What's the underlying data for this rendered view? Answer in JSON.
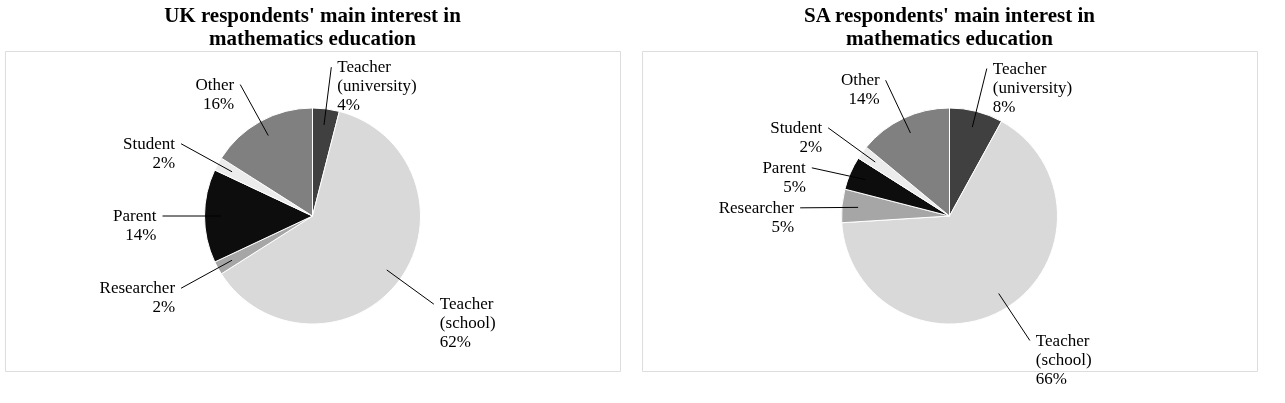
{
  "chart_data": [
    {
      "type": "pie",
      "title": "UK respondents' main interest in mathematics education",
      "categories": [
        "Teacher (university)",
        "Teacher (school)",
        "Researcher",
        "Parent",
        "Student",
        "Other"
      ],
      "values": [
        4,
        62,
        2,
        14,
        2,
        16
      ],
      "value_labels": [
        "4%",
        "62%",
        "2%",
        "14%",
        "2%",
        "16%"
      ],
      "colors": [
        "#404040",
        "#d9d9d9",
        "#a6a6a6",
        "#0d0d0d",
        "#ececec",
        "#808080"
      ]
    },
    {
      "type": "pie",
      "title": "SA respondents' main interest in mathematics education",
      "categories": [
        "Teacher (university)",
        "Teacher (school)",
        "Researcher",
        "Parent",
        "Student",
        "Other"
      ],
      "values": [
        8,
        66,
        5,
        5,
        2,
        14
      ],
      "value_labels": [
        "8%",
        "66%",
        "5%",
        "5%",
        "2%",
        "14%"
      ],
      "colors": [
        "#404040",
        "#d9d9d9",
        "#a6a6a6",
        "#0d0d0d",
        "#ececec",
        "#808080"
      ]
    }
  ]
}
